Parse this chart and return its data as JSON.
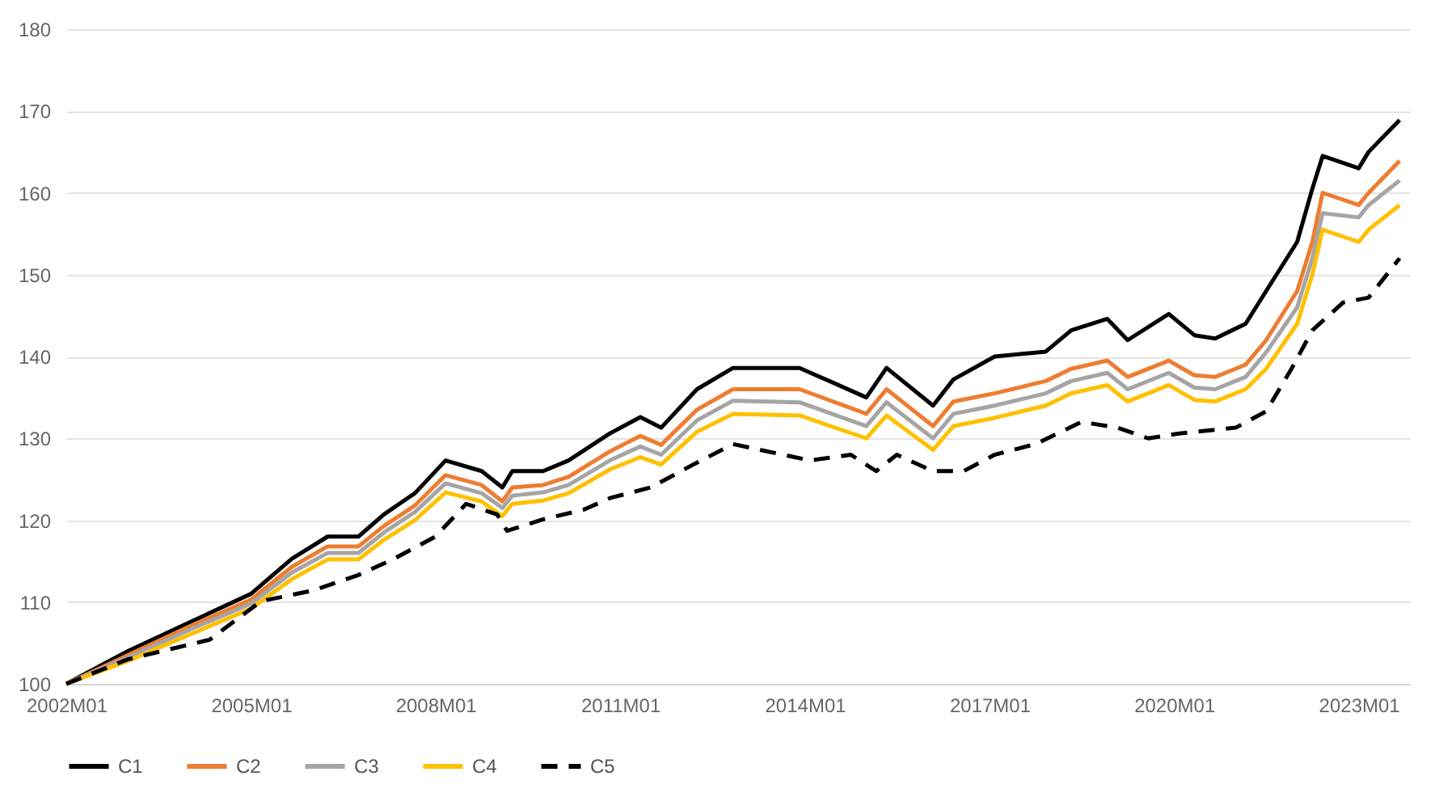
{
  "chart_data": {
    "type": "line",
    "x": [
      "2002-01",
      "2003-01",
      "2004-01",
      "2005-01",
      "2005-09",
      "2006-04",
      "2006-10",
      "2007-03",
      "2007-09",
      "2008-03",
      "2008-10",
      "2009-02",
      "2009-04",
      "2009-10",
      "2010-03",
      "2010-11",
      "2011-05",
      "2011-09",
      "2012-04",
      "2012-11",
      "2013-12",
      "2015-01",
      "2015-05",
      "2016-02",
      "2016-06",
      "2017-02",
      "2017-12",
      "2018-05",
      "2018-12",
      "2019-04",
      "2019-12",
      "2020-05",
      "2020-09",
      "2021-03",
      "2021-07",
      "2022-01",
      "2022-04",
      "2022-06",
      "2023-01",
      "2023-03",
      "2023-09"
    ],
    "series": [
      {
        "name": "C1",
        "color": "#000000",
        "line_style": "solid",
        "values": [
          100,
          104,
          107.5,
          111,
          115.3,
          118,
          118,
          120.7,
          123.3,
          127.3,
          126,
          124,
          126,
          126,
          127.3,
          130.6,
          132.6,
          131.3,
          136,
          138.6,
          138.6,
          135,
          138.6,
          134,
          137.2,
          140,
          140.6,
          143.2,
          144.6,
          142,
          145.2,
          142.6,
          142.2,
          144,
          148,
          154,
          160.5,
          164.5,
          163,
          165,
          168.9
        ]
      },
      {
        "name": "C2",
        "color": "#ed7d31",
        "line_style": "solid",
        "values": [
          100,
          103.5,
          107,
          110.3,
          114.3,
          116.8,
          116.8,
          119.3,
          121.8,
          125.5,
          124.3,
          122.3,
          124,
          124.3,
          125.3,
          128.4,
          130.3,
          129.2,
          133.5,
          136,
          136,
          133,
          136,
          131.5,
          134.5,
          135.5,
          137,
          138.5,
          139.5,
          137.5,
          139.5,
          137.7,
          137.5,
          139,
          142,
          148,
          154,
          160,
          158.5,
          160,
          163.9
        ]
      },
      {
        "name": "C3",
        "color": "#a5a5a5",
        "line_style": "solid",
        "values": [
          100,
          103.2,
          106.6,
          109.8,
          113.6,
          116,
          116,
          118.5,
          121,
          124.5,
          123.3,
          121.5,
          123,
          123.4,
          124.3,
          127.3,
          129,
          128,
          132.2,
          134.6,
          134.4,
          131.5,
          134.4,
          130,
          133,
          134,
          135.5,
          137,
          138,
          136,
          138,
          136.2,
          136,
          137.5,
          140.5,
          146,
          152,
          157.5,
          157,
          158.5,
          161.5
        ]
      },
      {
        "name": "C4",
        "color": "#ffc000",
        "line_style": "solid",
        "values": [
          100,
          102.8,
          106,
          109.2,
          112.8,
          115.2,
          115.2,
          117.6,
          120,
          123.4,
          122.3,
          120.5,
          122,
          122.4,
          123.3,
          126.2,
          127.7,
          126.8,
          130.8,
          133,
          132.8,
          130,
          132.8,
          128.6,
          131.5,
          132.5,
          134,
          135.5,
          136.5,
          134.5,
          136.5,
          134.7,
          134.5,
          136,
          138.5,
          144,
          150,
          155.5,
          154,
          155.5,
          158.5
        ]
      },
      {
        "name": "C5",
        "color": "#000000",
        "line_style": "dashed",
        "x": [
          "2002-01",
          "2003-01",
          "2004-05",
          "2005-03",
          "2006-01",
          "2006-10",
          "2007-05",
          "2008-01",
          "2008-07",
          "2009-01",
          "2009-03",
          "2009-10",
          "2010-06",
          "2010-11",
          "2011-07",
          "2012-03",
          "2012-11",
          "2014-02",
          "2014-10",
          "2015-03",
          "2015-07",
          "2016-02",
          "2016-08",
          "2017-02",
          "2017-10",
          "2018-07",
          "2019-02",
          "2019-08",
          "2020-02",
          "2021-01",
          "2021-07",
          "2021-12",
          "2022-04",
          "2022-10",
          "2023-03",
          "2023-09"
        ],
        "values": [
          100,
          103,
          105.4,
          110.1,
          111.4,
          113.3,
          115.3,
          118,
          122,
          120.7,
          118.7,
          120.1,
          121.3,
          122.7,
          124,
          126.7,
          129.3,
          127.3,
          128,
          126,
          128,
          126,
          126,
          128,
          129.3,
          132,
          131.3,
          130,
          130.6,
          131.3,
          133.3,
          138.6,
          143.2,
          146.6,
          147.2,
          152
        ]
      }
    ],
    "xlim": [
      "2002-01",
      "2023-11"
    ],
    "xticks": [
      {
        "value": "2002-01",
        "label": "2002M01"
      },
      {
        "value": "2005-01",
        "label": "2005M01"
      },
      {
        "value": "2008-01",
        "label": "2008M01"
      },
      {
        "value": "2011-01",
        "label": "2011M01"
      },
      {
        "value": "2014-01",
        "label": "2014M01"
      },
      {
        "value": "2017-01",
        "label": "2017M01"
      },
      {
        "value": "2020-01",
        "label": "2020M01"
      },
      {
        "value": "2023-01",
        "label": "2023M01"
      }
    ],
    "ylim": [
      100,
      180
    ],
    "yticks": [
      100,
      110,
      120,
      130,
      140,
      150,
      160,
      170,
      180
    ],
    "grid": "y",
    "legend": "bottom"
  }
}
